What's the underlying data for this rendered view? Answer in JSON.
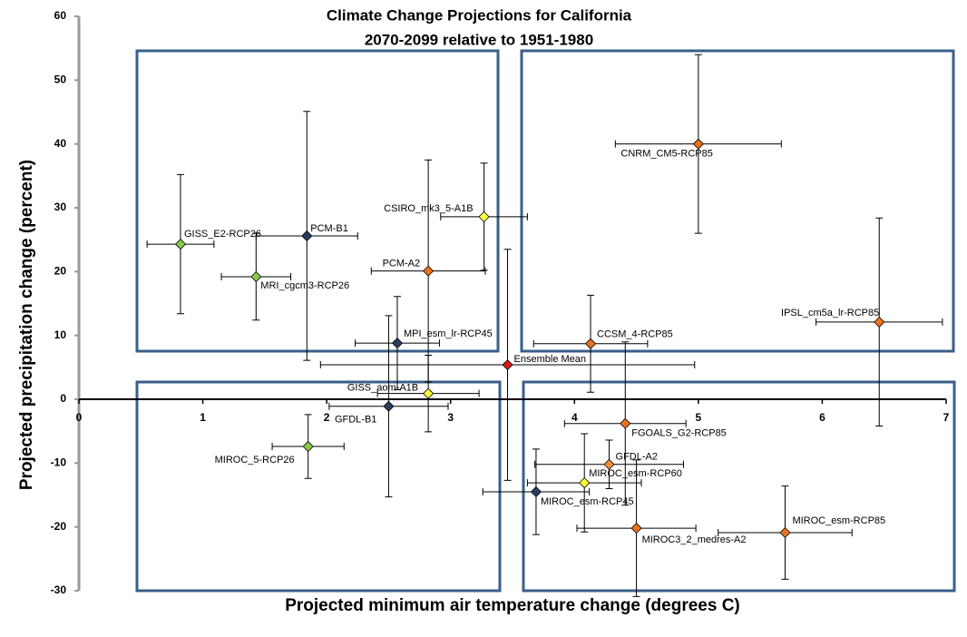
{
  "chart_data": {
    "type": "scatter",
    "title": "Climate Change Projections for California",
    "subtitle": "2070-2099 relative to 1951-1980",
    "x_label": "Projected minimum air temperature change  (degrees C)",
    "y_label": "Projected precipitation change (percent)",
    "labels": [
      "GISS_E2-RCP26",
      "PCM-B1",
      "MRI_cgcm3-RCP26",
      "PCM-A2",
      "CSIRO_mk3_5-A1B",
      "MPI_esm_lr-RCP45",
      "Ensemble Mean",
      "GISS_aom-A1B",
      "GFDL-B1",
      "MIROC_5-RCP26",
      "CNRM_CM5-RCP85",
      "IPSL_cm5a_lr-RCP85",
      "CCSM_4-RCP85",
      "FGOALS_G2-RCP85",
      "GFDL-A2",
      "MIROC_esm-RCP60",
      "MIROC_esm-RCP45",
      "MIROC3_2_medres-A2",
      "MIROC_esm-RCP85"
    ],
    "x": [
      0.82,
      1.84,
      1.43,
      2.82,
      3.27,
      2.57,
      3.46,
      2.82,
      2.5,
      1.85,
      5.0,
      6.46,
      4.13,
      4.41,
      4.28,
      4.08,
      3.69,
      4.5,
      5.7
    ],
    "values": [
      24.3,
      25.6,
      19.2,
      20.1,
      28.6,
      8.8,
      5.4,
      0.9,
      -1.1,
      -7.4,
      40.0,
      12.1,
      8.7,
      -3.8,
      -10.2,
      -13.1,
      -14.5,
      -20.2,
      -20.9
    ],
    "xerr": [
      0.27,
      0.41,
      0.28,
      0.46,
      0.35,
      0.34,
      1.51,
      0.41,
      0.48,
      0.29,
      0.67,
      0.51,
      0.46,
      0.49,
      0.6,
      0.46,
      0.43,
      0.48,
      0.54
    ],
    "yerr": [
      10.9,
      19.5,
      6.8,
      17.4,
      8.4,
      7.3,
      18.1,
      6.0,
      14.2,
      5.0,
      14.0,
      16.3,
      7.6,
      12.8,
      3.8,
      7.7,
      6.7,
      10.7,
      7.3
    ],
    "colors": [
      "#8cc84b",
      "#2b3d5c",
      "#8cc84b",
      "#e8731e",
      "#ffff3c",
      "#2b3d5c",
      "#d01c1c",
      "#ffff3c",
      "#2b3d5c",
      "#8cc84b",
      "#e8731e",
      "#e8731e",
      "#e8731e",
      "#e8731e",
      "#ef8f3a",
      "#ffff3c",
      "#2b3d5c",
      "#e8731e",
      "#e8731e"
    ],
    "xlim": [
      0,
      7
    ],
    "xticks": [
      0,
      1,
      2,
      3,
      4,
      5,
      6,
      7
    ],
    "ylim": [
      -30,
      60
    ],
    "yticks": [
      -30,
      -20,
      -10,
      0,
      10,
      20,
      30,
      40,
      50,
      60
    ]
  }
}
